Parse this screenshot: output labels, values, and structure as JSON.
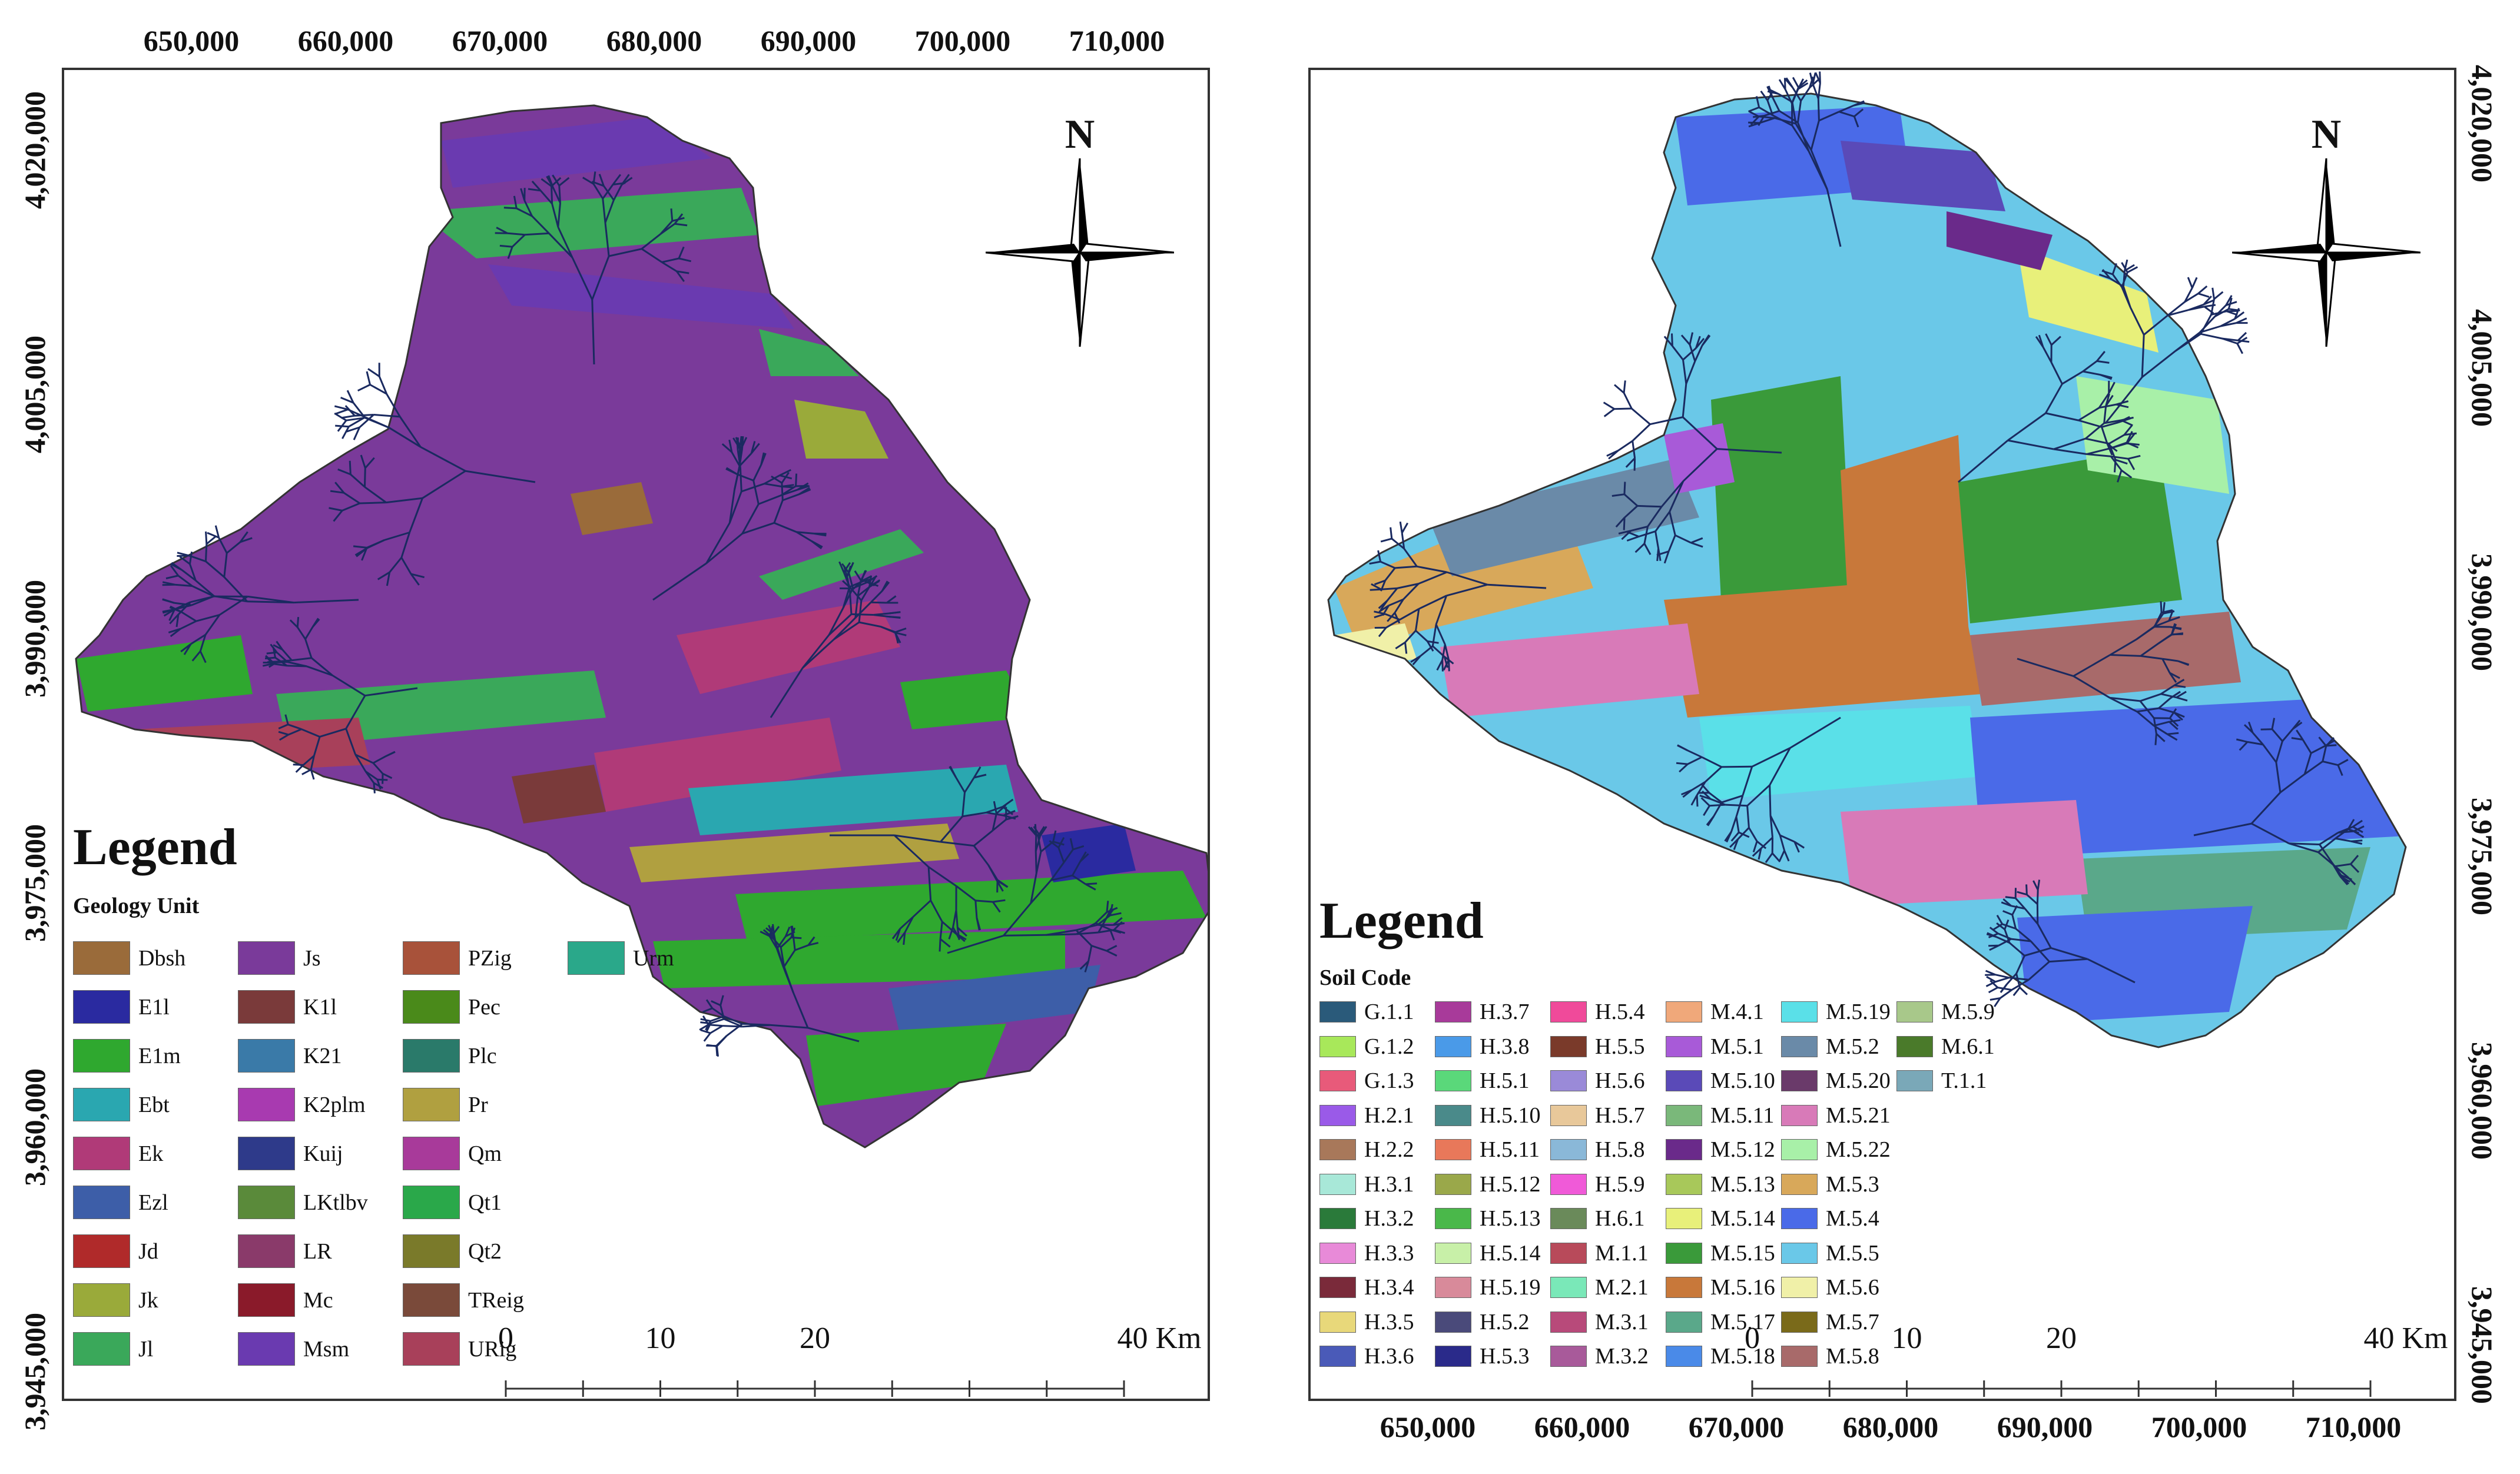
{
  "left_map": {
    "x_ticks": [
      "650,000",
      "660,000",
      "670,000",
      "680,000",
      "690,000",
      "700,000",
      "710,000"
    ],
    "y_ticks": [
      "4,020,000",
      "4,005,000",
      "3,990,000",
      "3,975,000",
      "3,960,000",
      "3,945,000"
    ],
    "north": "N",
    "legend_title": "Legend",
    "legend_header": "Geology Unit",
    "legend_items": [
      {
        "label": "Dbsh",
        "color": "#9a6b3a"
      },
      {
        "label": "E1l",
        "color": "#2a2aa0"
      },
      {
        "label": "E1m",
        "color": "#2fa82f"
      },
      {
        "label": "Ebt",
        "color": "#2aa7b0"
      },
      {
        "label": "Ek",
        "color": "#b03a78"
      },
      {
        "label": "Ezl",
        "color": "#3d5ea8"
      },
      {
        "label": "Jd",
        "color": "#b02a2a"
      },
      {
        "label": "Jk",
        "color": "#9aaa3a"
      },
      {
        "label": "Jl",
        "color": "#3aa85a"
      },
      {
        "label": "Js",
        "color": "#7a3a9a"
      },
      {
        "label": "K1l",
        "color": "#7a3a3a"
      },
      {
        "label": "K21",
        "color": "#3a7aa8"
      },
      {
        "label": "K2plm",
        "color": "#a83ab0"
      },
      {
        "label": "Kuij",
        "color": "#2e3a8a"
      },
      {
        "label": "LKtlbv",
        "color": "#5a8a3a"
      },
      {
        "label": "LR",
        "color": "#8a3a6a"
      },
      {
        "label": "Mc",
        "color": "#8a1a2a"
      },
      {
        "label": "Msm",
        "color": "#6a3ab0"
      },
      {
        "label": "PZig",
        "color": "#a8523a"
      },
      {
        "label": "Pec",
        "color": "#4a8a1a"
      },
      {
        "label": "Plc",
        "color": "#2a7a6a"
      },
      {
        "label": "Pr",
        "color": "#b0a040"
      },
      {
        "label": "Qm",
        "color": "#a83a9a"
      },
      {
        "label": "Qt1",
        "color": "#2aa84a"
      },
      {
        "label": "Qt2",
        "color": "#7a7a2a"
      },
      {
        "label": "TReig",
        "color": "#7a4a3a"
      },
      {
        "label": "URig",
        "color": "#a8405a"
      },
      {
        "label": "Urm",
        "color": "#2aa88a"
      }
    ],
    "scale_labels": [
      "0",
      "10",
      "20",
      "40 Km"
    ]
  },
  "right_map": {
    "x_ticks": [
      "650,000",
      "660,000",
      "670,000",
      "680,000",
      "690,000",
      "700,000",
      "710,000"
    ],
    "y_ticks": [
      "4,020,000",
      "4,005,000",
      "3,990,000",
      "3,975,000",
      "3,960,000",
      "3,945,000"
    ],
    "north": "N",
    "legend_title": "Legend",
    "legend_header": "Soil Code",
    "legend_items": [
      {
        "label": "G.1.1",
        "color": "#2a5a7a"
      },
      {
        "label": "G.1.2",
        "color": "#a8e85a"
      },
      {
        "label": "G.1.3",
        "color": "#e85a7a"
      },
      {
        "label": "H.2.1",
        "color": "#9a5ae8"
      },
      {
        "label": "H.2.2",
        "color": "#a8785a"
      },
      {
        "label": "H.3.1",
        "color": "#a8e8d8"
      },
      {
        "label": "H.3.2",
        "color": "#2a7a3a"
      },
      {
        "label": "H.3.3",
        "color": "#e88ad8"
      },
      {
        "label": "H.3.4",
        "color": "#7a2a3a"
      },
      {
        "label": "H.3.5",
        "color": "#e8d87a"
      },
      {
        "label": "H.3.6",
        "color": "#4a5ab8"
      },
      {
        "label": "H.3.7",
        "color": "#a83a9a"
      },
      {
        "label": "H.3.8",
        "color": "#4a9ae8"
      },
      {
        "label": "H.5.1",
        "color": "#5ad87a"
      },
      {
        "label": "H.5.10",
        "color": "#4a8a8a"
      },
      {
        "label": "H.5.11",
        "color": "#e8785a"
      },
      {
        "label": "H.5.12",
        "color": "#9aa84a"
      },
      {
        "label": "H.5.13",
        "color": "#4ab84a"
      },
      {
        "label": "H.5.14",
        "color": "#c8f0a8"
      },
      {
        "label": "H.5.19",
        "color": "#d88a9a"
      },
      {
        "label": "H.5.2",
        "color": "#4a4a7a"
      },
      {
        "label": "H.5.3",
        "color": "#2a2a8a"
      },
      {
        "label": "H.5.4",
        "color": "#f04a9a"
      },
      {
        "label": "H.5.5",
        "color": "#7a3a2a"
      },
      {
        "label": "H.5.6",
        "color": "#9a8ad8"
      },
      {
        "label": "H.5.7",
        "color": "#e8c89a"
      },
      {
        "label": "H.5.8",
        "color": "#8ab8d8"
      },
      {
        "label": "H.5.9",
        "color": "#f05ad8"
      },
      {
        "label": "H.6.1",
        "color": "#6a8a5a"
      },
      {
        "label": "M.1.1",
        "color": "#b84a5a"
      },
      {
        "label": "M.2.1",
        "color": "#7ae8b8"
      },
      {
        "label": "M.3.1",
        "color": "#b84a7a"
      },
      {
        "label": "M.3.2",
        "color": "#a85a9a"
      },
      {
        "label": "M.4.1",
        "color": "#f0a87a"
      },
      {
        "label": "M.5.1",
        "color": "#a85ad8"
      },
      {
        "label": "M.5.10",
        "color": "#5a4ab8"
      },
      {
        "label": "M.5.11",
        "color": "#7ab87a"
      },
      {
        "label": "M.5.12",
        "color": "#6a2a8a"
      },
      {
        "label": "M.5.13",
        "color": "#a8c85a"
      },
      {
        "label": "M.5.14",
        "color": "#e8f07a"
      },
      {
        "label": "M.5.15",
        "color": "#3a9a3a"
      },
      {
        "label": "M.5.16",
        "color": "#c8783a"
      },
      {
        "label": "M.5.17",
        "color": "#5aa88a"
      },
      {
        "label": "M.5.18",
        "color": "#4a8ae8"
      },
      {
        "label": "M.5.19",
        "color": "#5ae0e8"
      },
      {
        "label": "M.5.2",
        "color": "#6a8aa8"
      },
      {
        "label": "M.5.20",
        "color": "#6a3a6a"
      },
      {
        "label": "M.5.21",
        "color": "#d87ab8"
      },
      {
        "label": "M.5.22",
        "color": "#a8f0a8"
      },
      {
        "label": "M.5.3",
        "color": "#d8a85a"
      },
      {
        "label": "M.5.4",
        "color": "#4a6ae8"
      },
      {
        "label": "M.5.5",
        "color": "#6ac8e8"
      },
      {
        "label": "M.5.6",
        "color": "#f0f0a8"
      },
      {
        "label": "M.5.7",
        "color": "#7a6a1a"
      },
      {
        "label": "M.5.8",
        "color": "#a86a6a"
      },
      {
        "label": "M.5.9",
        "color": "#a8c88a"
      },
      {
        "label": "M.6.1",
        "color": "#4a7a2a"
      },
      {
        "label": "T.1.1",
        "color": "#7aa8b8"
      }
    ],
    "scale_labels": [
      "0",
      "10",
      "20",
      "40 Km"
    ]
  }
}
